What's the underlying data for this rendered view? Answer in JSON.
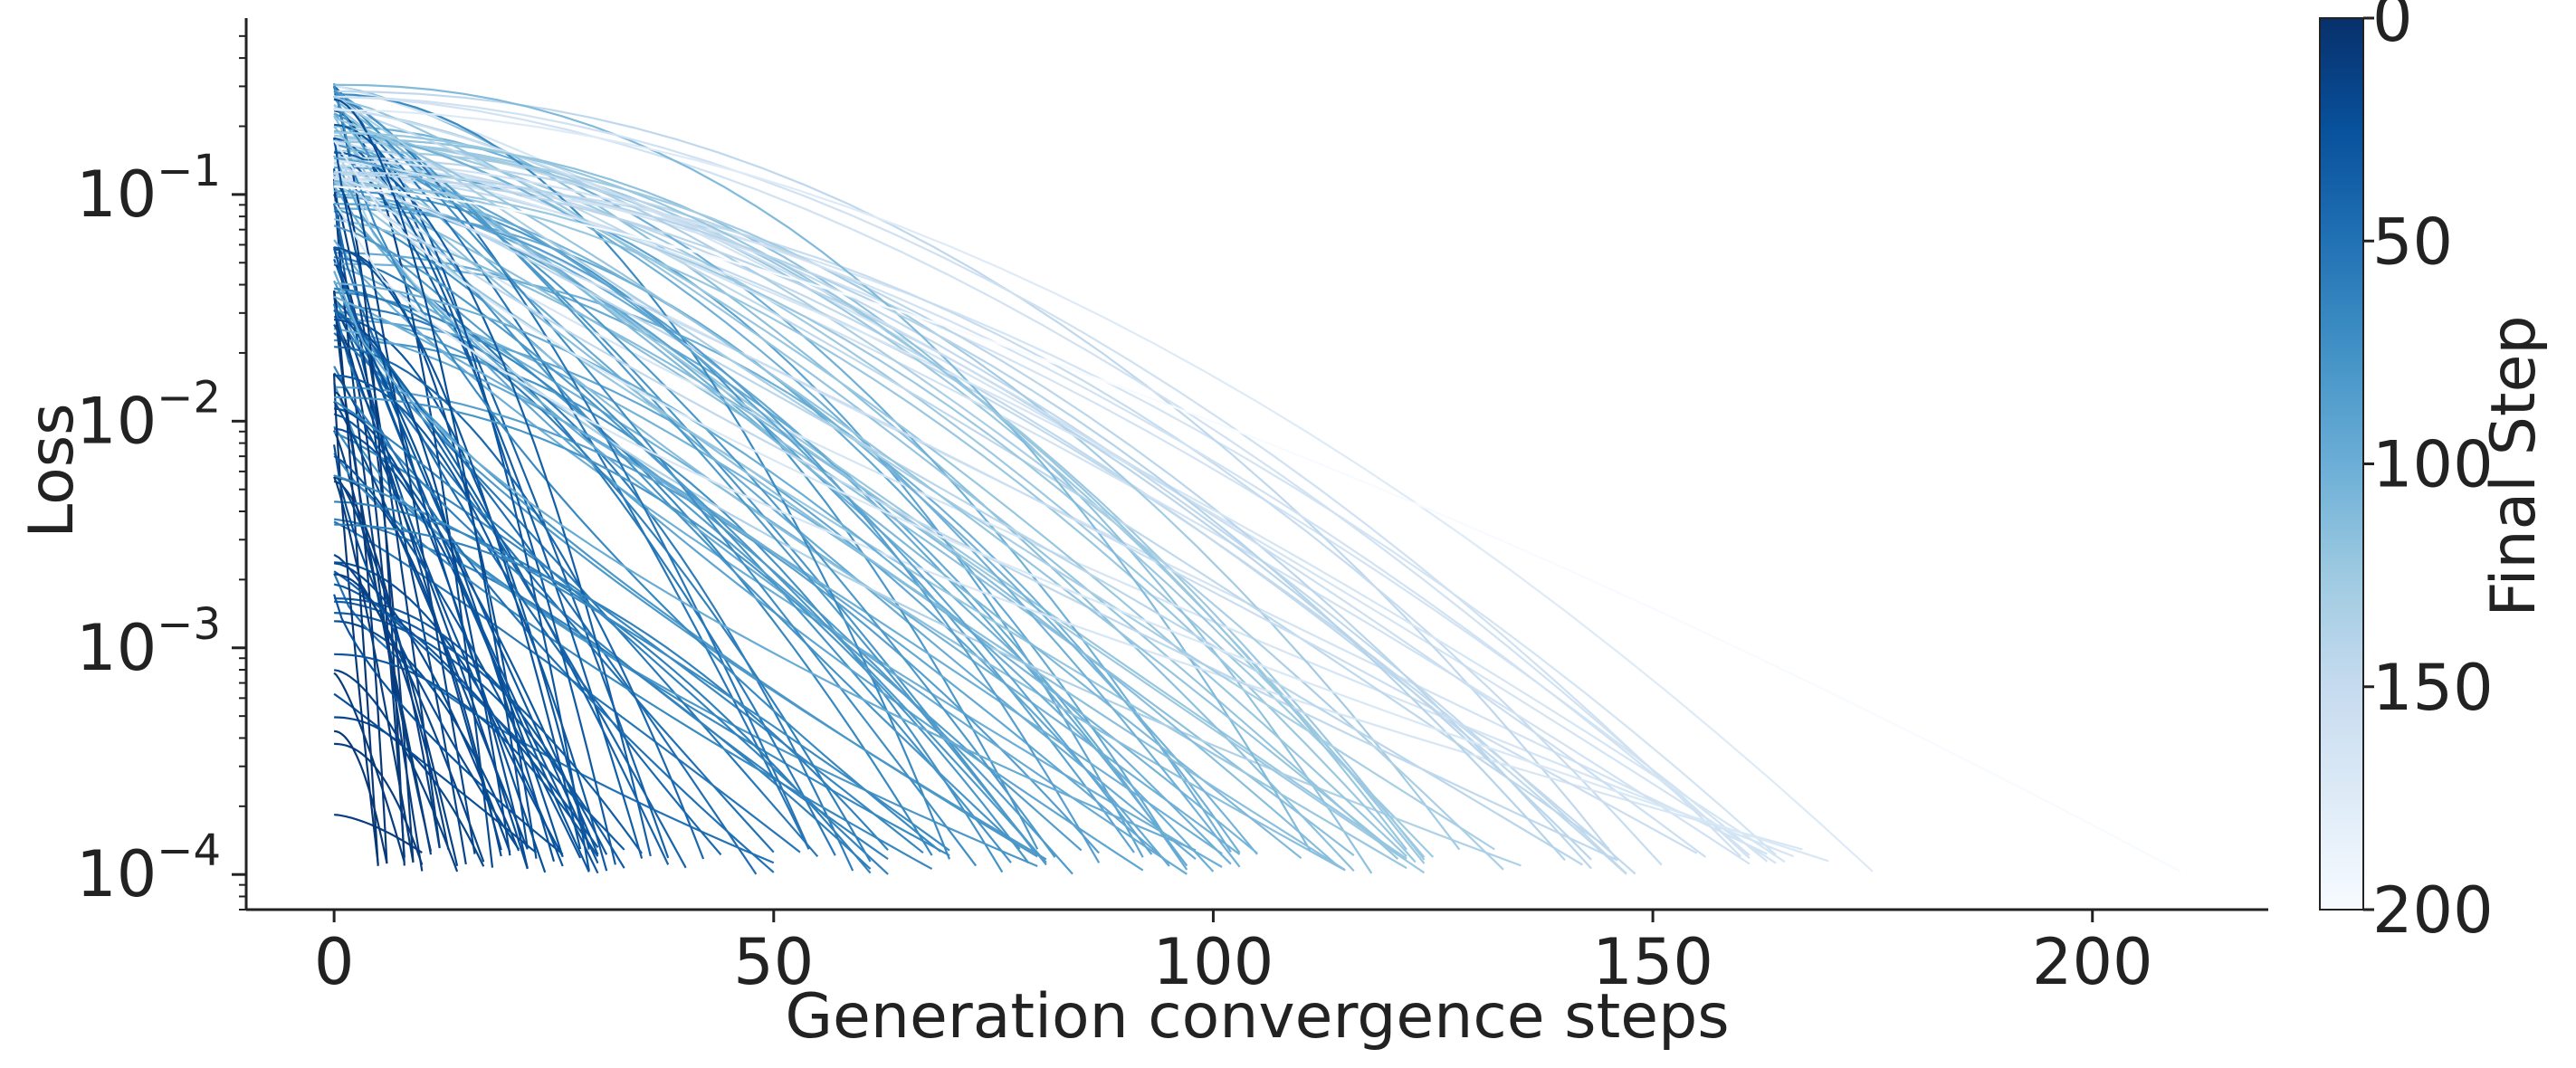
{
  "chart_data": {
    "type": "line",
    "title": "",
    "xlabel": "Generation convergence steps",
    "ylabel": "Loss",
    "yscale": "log",
    "xlim": [
      -10,
      220
    ],
    "ylim": [
      7e-05,
      0.6
    ],
    "xticks": [
      0,
      50,
      100,
      150,
      200
    ],
    "xtick_labels": [
      "0",
      "50",
      "100",
      "150",
      "200"
    ],
    "yticks": [
      0.0001,
      0.001,
      0.01,
      0.1
    ],
    "ytick_labels": [
      {
        "base": "10",
        "exp": "−4"
      },
      {
        "base": "10",
        "exp": "−3"
      },
      {
        "base": "10",
        "exp": "−2"
      },
      {
        "base": "10",
        "exp": "−1"
      }
    ],
    "grid": false,
    "colormap": "Blues",
    "colormap_start_color": "#f7fbff",
    "colormap_end_color": "#08306b",
    "series_count": 178,
    "colorbar": {
      "label": "Final Step",
      "range": [
        0,
        200
      ],
      "reversed": true,
      "ticks": [
        0,
        50,
        100,
        150,
        200
      ],
      "tick_labels": [
        "0",
        "50",
        "100",
        "150",
        "200"
      ]
    },
    "series_note_values": "Each series is one generation run starting at step 0 and ending at its final step (0 to 210), with loss decaying from roughly 3e-1..1e-4 down to about 1e-4; color encodes the final step."
  }
}
